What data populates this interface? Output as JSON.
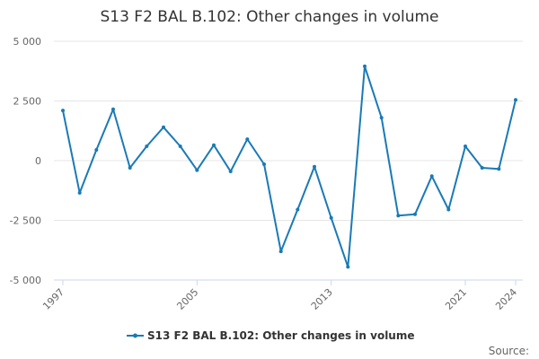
{
  "chart_data": {
    "type": "line",
    "title": "S13 F2 BAL B.102: Other changes in volume",
    "xlabel": "",
    "ylabel": "",
    "x": [
      1997,
      1998,
      1999,
      2000,
      2001,
      2002,
      2003,
      2004,
      2005,
      2006,
      2007,
      2008,
      2009,
      2010,
      2011,
      2012,
      2013,
      2014,
      2015,
      2016,
      2017,
      2018,
      2019,
      2020,
      2021,
      2022,
      2023,
      2024
    ],
    "series": [
      {
        "name": "S13 F2 BAL B.102: Other changes in volume",
        "color": "#1a7ab6",
        "values": [
          2100,
          -1350,
          450,
          2150,
          -300,
          600,
          1400,
          600,
          -400,
          650,
          -450,
          900,
          -150,
          -3800,
          -2050,
          -250,
          -2400,
          -4450,
          3950,
          1800,
          -2300,
          -2250,
          -650,
          -2050,
          600,
          -300,
          -350,
          2550
        ]
      }
    ],
    "ylim": [
      -5000,
      5000
    ],
    "yticks": [
      5000,
      2500,
      0,
      -2500,
      -5000
    ],
    "ytick_labels": [
      "5 000",
      "2 500",
      "0",
      "-2 500",
      "-5 000"
    ],
    "xticks": [
      1997,
      2005,
      2013,
      2021,
      2024
    ],
    "xtick_labels": [
      "1997",
      "2005",
      "2013",
      "2021",
      "2024"
    ],
    "grid": true,
    "legend_position": "bottom-center"
  },
  "footer": {
    "source_label": "Source:"
  }
}
